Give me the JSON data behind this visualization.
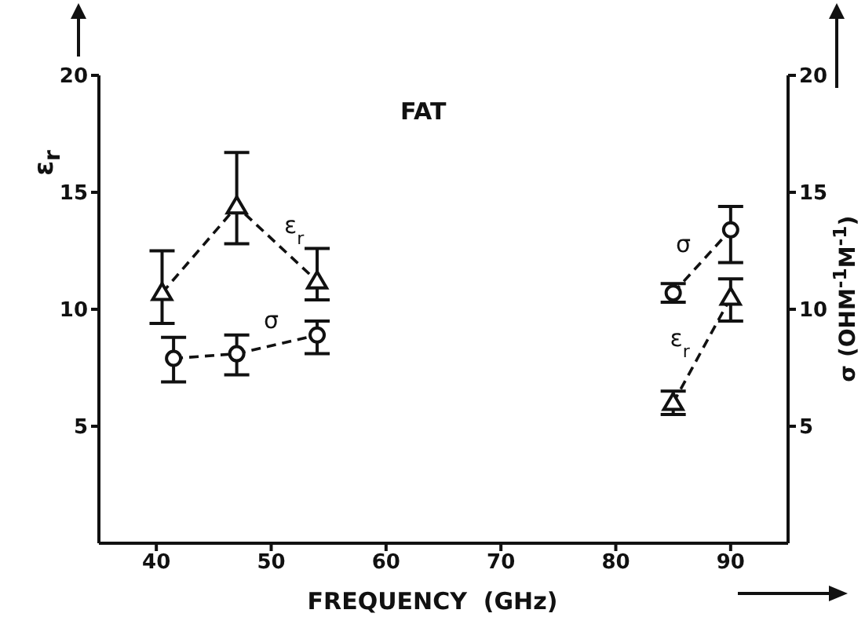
{
  "chart_data": {
    "type": "line",
    "title": "FAT",
    "xlabel": "FREQUENCY  (GHz)",
    "ylabel": "ε$_{r}$",
    "y2label": "σ (OHM$^{-1}$M$^{-1}$)",
    "xlim": [
      35,
      95
    ],
    "xticks": [
      40,
      50,
      60,
      70,
      80,
      90
    ],
    "ylim": [
      0,
      20
    ],
    "yticks": [
      5,
      10,
      15,
      20
    ],
    "y2lim": [
      0,
      20
    ],
    "y2ticks": [
      5,
      10,
      15,
      20
    ],
    "grid": false,
    "line_style": "dashed",
    "series": [
      {
        "name": "ε$_{r}$",
        "color": "#111111",
        "marker": "triangle",
        "x": [
          40.5,
          47,
          54,
          70,
          85,
          90
        ],
        "values": [
          10.7,
          14.4,
          11.2,
          null,
          6.0,
          10.5
        ],
        "errors": [
          [
            9.4,
            12.5
          ],
          [
            12.8,
            16.7
          ],
          [
            10.4,
            12.6
          ],
          null,
          [
            5.5,
            6.5
          ],
          [
            9.5,
            11.3
          ]
        ]
      },
      {
        "name": "σ",
        "color": "#111111",
        "marker": "circle",
        "axis": "y2",
        "x": [
          41.5,
          47,
          54,
          70,
          85,
          90
        ],
        "values": [
          7.9,
          8.1,
          8.9,
          null,
          10.7,
          13.4
        ],
        "errors": [
          [
            6.9,
            8.8
          ],
          [
            7.2,
            8.9
          ],
          [
            8.1,
            9.5
          ],
          null,
          [
            10.3,
            11.1
          ],
          [
            12.0,
            14.4
          ]
        ]
      }
    ]
  }
}
